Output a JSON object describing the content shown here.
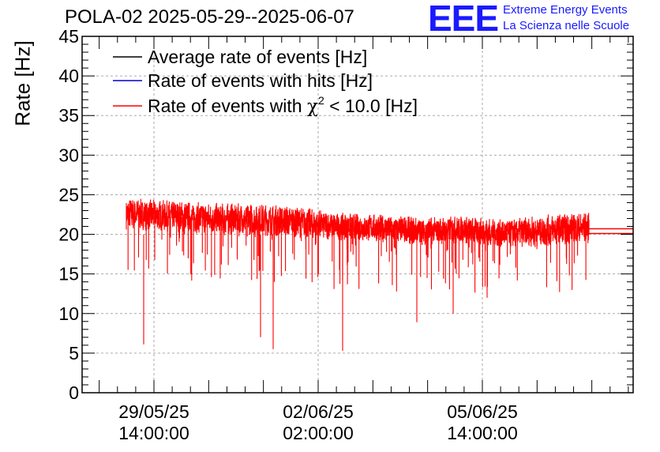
{
  "chart_data": {
    "type": "line",
    "title": "POLA-02 2025-05-29--2025-06-07",
    "ylabel": "Rate [Hz]",
    "xlabel": "",
    "ylim": [
      0,
      45
    ],
    "yticks": [
      "0",
      "5",
      "10",
      "15",
      "20",
      "25",
      "30",
      "35",
      "40",
      "45"
    ],
    "xticks": [
      {
        "date": "29/05/25",
        "time": "14:00:00"
      },
      {
        "date": "02/06/25",
        "time": "02:00:00"
      },
      {
        "date": "05/06/25",
        "time": "14:00:00"
      }
    ],
    "grid": true,
    "legend_position": "top-left",
    "legend": [
      {
        "label": "Average rate of events [Hz]",
        "color": "#000000"
      },
      {
        "label": "Rate of events with hits [Hz]",
        "color": "#0000cc"
      },
      {
        "label_prefix": "Rate of events with ",
        "label_symbol": "χ",
        "label_sup": "2",
        "label_suffix": " < 10.0 [Hz]",
        "color": "#ff0000"
      }
    ],
    "series_profile": {
      "x": [
        "29/05/25 05:00",
        "29/05/25 14:00",
        "30/05/25 14:00",
        "31/05/25 14:00",
        "01/06/25 14:00",
        "02/06/25 02:00",
        "02/06/25 14:00",
        "03/06/25 14:00",
        "04/06/25 14:00",
        "05/06/25 14:00",
        "06/06/25 14:00",
        "07/06/25 04:00"
      ],
      "mean": [
        22.6,
        22.3,
        22.0,
        21.9,
        21.6,
        21.0,
        20.8,
        20.4,
        20.6,
        20.1,
        20.5,
        20.8
      ],
      "band_low": [
        20,
        20,
        19.5,
        19.5,
        19,
        19,
        19,
        18.5,
        18.5,
        18.5,
        18.5,
        18.5
      ],
      "band_high": [
        24,
        24,
        23.5,
        23.5,
        23,
        22.5,
        22.5,
        22,
        22,
        22,
        22.5,
        22.5
      ],
      "dips": [
        6.1,
        7.0,
        5.5,
        5.3,
        8.9,
        10.0,
        12.0
      ]
    },
    "colors": {
      "series": "#ff0000",
      "grid": "#aaaaaa",
      "axis": "#000000"
    }
  },
  "logo": {
    "mark": "EEE",
    "line1": "Extreme Energy Events",
    "line2": "La Scienza nelle Scuole"
  }
}
